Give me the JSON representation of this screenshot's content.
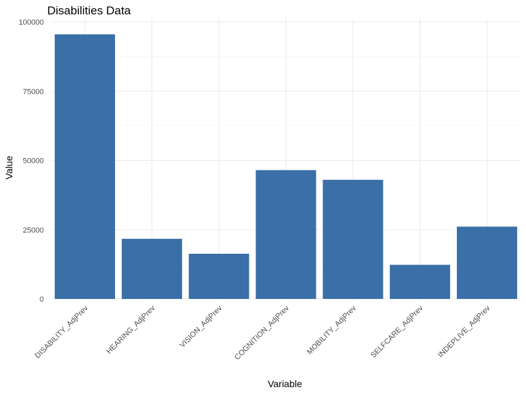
{
  "chart_data": {
    "type": "bar",
    "title": "Disabilities Data",
    "xlabel": "Variable",
    "ylabel": "Value",
    "categories": [
      "DISABILITY_AdjPrev",
      "HEARING_AdjPrev",
      "VISION_AdjPrev",
      "COGNITION_AdjPrev",
      "MOBILITY_AdjPrev",
      "SELFCARE_AdjPrev",
      "INDEPLIVE_AdjPrev"
    ],
    "values": [
      95500,
      21700,
      16300,
      46500,
      43000,
      12300,
      26100
    ],
    "ylim": [
      0,
      100000
    ],
    "yticks": [
      0,
      25000,
      50000,
      75000,
      100000
    ],
    "ytick_labels": [
      "0",
      "25000",
      "50000",
      "75000",
      "100000"
    ],
    "bar_color": "#3a6fa8",
    "grid": true,
    "legend": "none"
  }
}
